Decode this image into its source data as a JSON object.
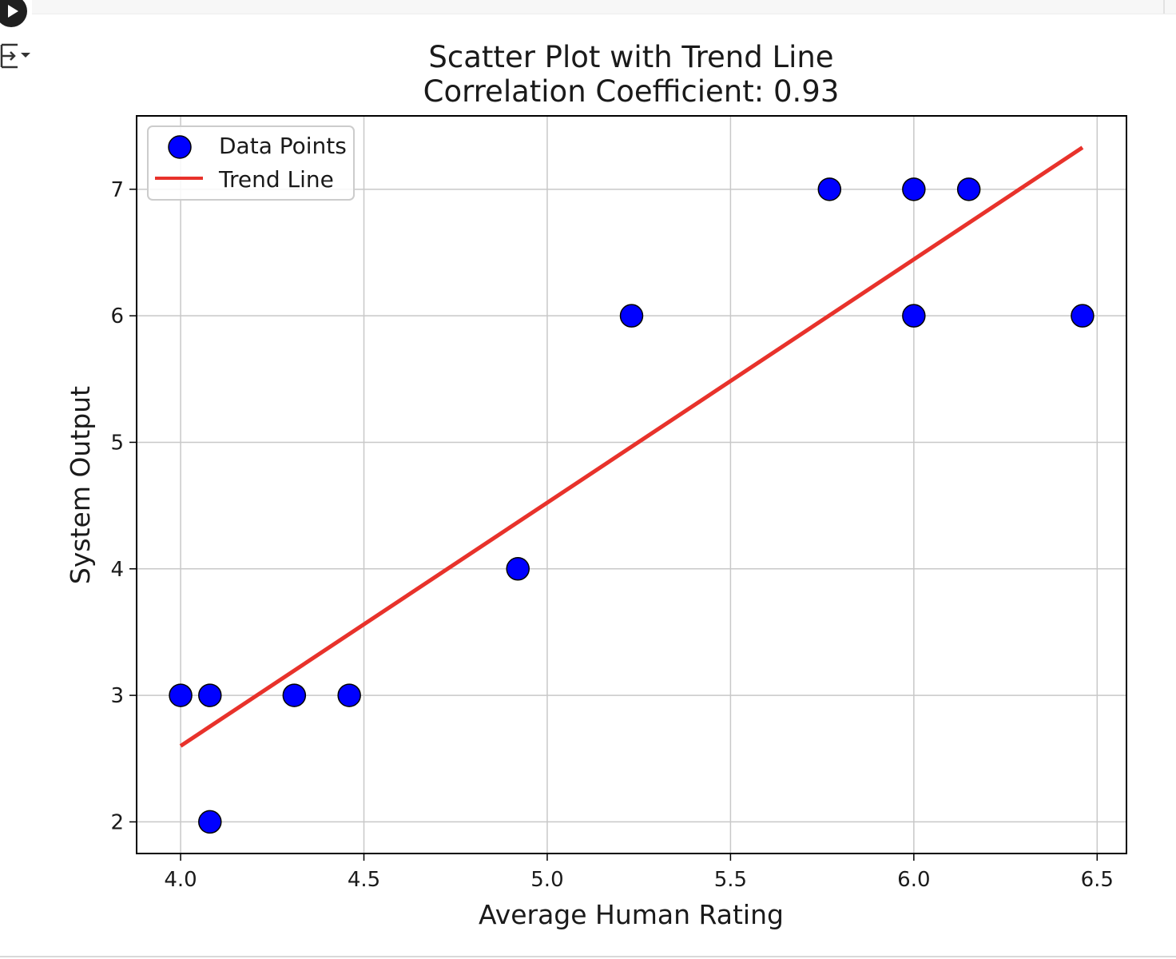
{
  "notebook": {
    "run_icon": "play-icon",
    "output_toggle_icon": "output-collapse-icon"
  },
  "chart_data": {
    "type": "scatter",
    "title": "Scatter Plot with Trend Line",
    "subtitle": "Correlation Coefficient: 0.93",
    "xlabel": "Average Human Rating",
    "ylabel": "System Output",
    "xlim": [
      3.88,
      6.58
    ],
    "ylim": [
      1.75,
      7.58
    ],
    "xticks": [
      "4.0",
      "4.5",
      "5.0",
      "5.5",
      "6.0",
      "6.5"
    ],
    "yticks": [
      "2",
      "3",
      "4",
      "5",
      "6",
      "7"
    ],
    "grid": true,
    "legend_position": "top-left",
    "series": [
      {
        "name": "Data Points",
        "kind": "scatter",
        "color": "#0000ff",
        "edge_color": "#000000",
        "points": [
          {
            "x": 4.0,
            "y": 3
          },
          {
            "x": 4.08,
            "y": 3
          },
          {
            "x": 4.08,
            "y": 2
          },
          {
            "x": 4.31,
            "y": 3
          },
          {
            "x": 4.46,
            "y": 3
          },
          {
            "x": 4.92,
            "y": 4
          },
          {
            "x": 5.23,
            "y": 6
          },
          {
            "x": 5.77,
            "y": 7
          },
          {
            "x": 6.0,
            "y": 7
          },
          {
            "x": 6.0,
            "y": 6
          },
          {
            "x": 6.15,
            "y": 7
          },
          {
            "x": 6.46,
            "y": 6
          }
        ]
      },
      {
        "name": "Trend Line",
        "kind": "line",
        "color": "#e8322b",
        "points": [
          {
            "x": 4.0,
            "y": 2.6
          },
          {
            "x": 6.46,
            "y": 7.33
          }
        ]
      }
    ]
  }
}
